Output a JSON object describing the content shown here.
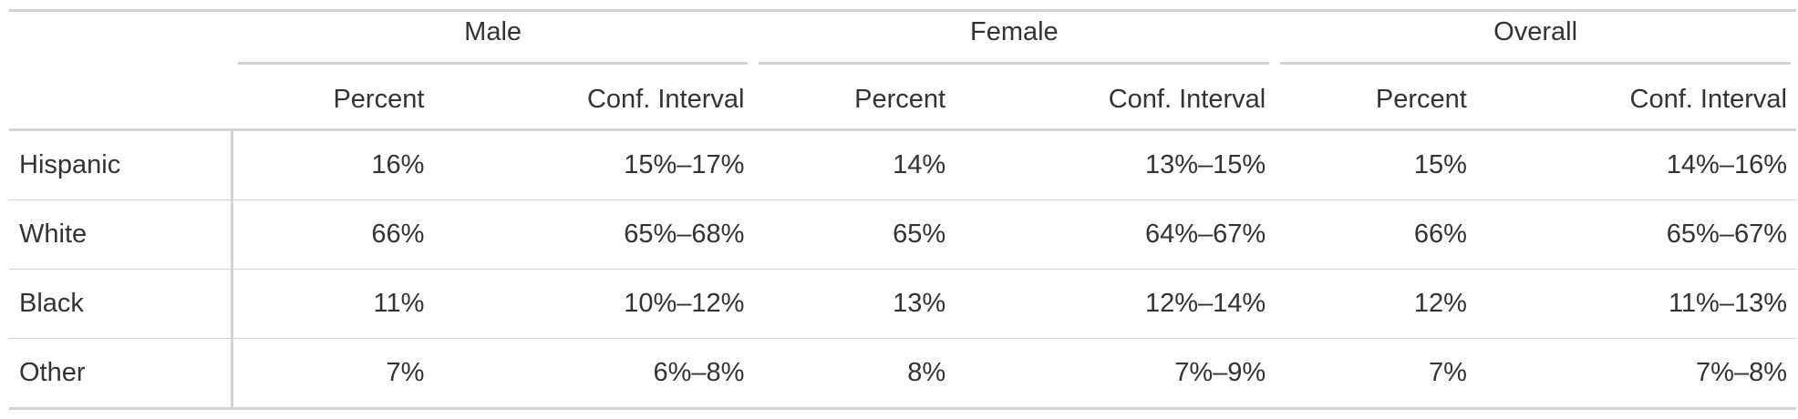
{
  "table": {
    "spanners": [
      "Male",
      "Female",
      "Overall"
    ],
    "column_labels": {
      "percent": "Percent",
      "ci": "Conf. Interval"
    },
    "rows": [
      {
        "label": "Hispanic",
        "cells": [
          "16%",
          "15%–17%",
          "14%",
          "13%–15%",
          "15%",
          "14%–16%"
        ]
      },
      {
        "label": "White",
        "cells": [
          "66%",
          "65%–68%",
          "65%",
          "64%–67%",
          "66%",
          "65%–67%"
        ]
      },
      {
        "label": "Black",
        "cells": [
          "11%",
          "10%–12%",
          "13%",
          "12%–14%",
          "12%",
          "11%–13%"
        ]
      },
      {
        "label": "Other",
        "cells": [
          "7%",
          "6%–8%",
          "8%",
          "7%–9%",
          "7%",
          "7%–8%"
        ]
      }
    ]
  }
}
